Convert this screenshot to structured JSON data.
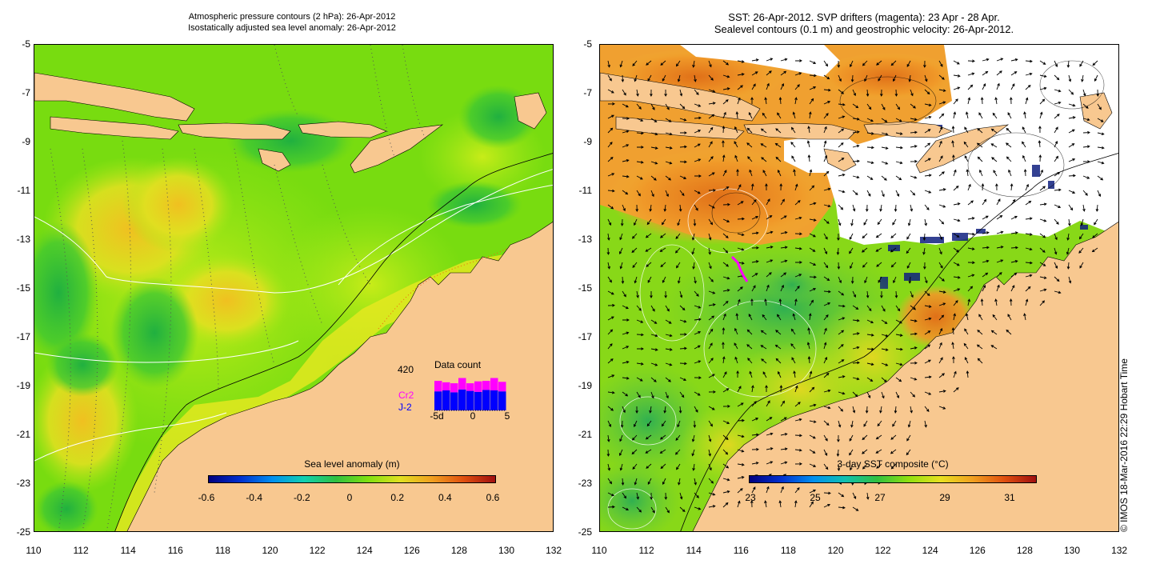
{
  "left": {
    "title_line1": "Atmospheric pressure contours (2 hPa): 26-Apr-2012",
    "title_line2": "Isostatically adjusted sea level anomaly: 26-Apr-2012",
    "colorbar": {
      "title": "Sea level anomaly (m)",
      "ticks": [
        "-0.6",
        "-0.4",
        "-0.2",
        "0",
        "0.2",
        "0.4",
        "0.6"
      ]
    },
    "data_count": {
      "title": "Data count",
      "max_label": "420",
      "series": [
        {
          "name": "Cr2",
          "color": "#ff00ff",
          "values": [
            110,
            85,
            95,
            120,
            80,
            110,
            95,
            130,
            100
          ]
        },
        {
          "name": "J-2",
          "color": "#0000ff",
          "values": [
            200,
            210,
            190,
            220,
            205,
            195,
            215,
            210,
            200
          ]
        }
      ],
      "x_ticks": [
        "-5d",
        "0",
        "5"
      ]
    }
  },
  "right": {
    "title_line1": "SST: 26-Apr-2012. SVP drifters (magenta): 23 Apr - 28 Apr.",
    "title_line2": "Sealevel contours (0.1 m) and geostrophic velocity: 26-Apr-2012.",
    "colorbar": {
      "title": "3-day SST composite (°C)",
      "ticks": [
        "23",
        "25",
        "27",
        "29",
        "31"
      ]
    }
  },
  "axes": {
    "y_labels": [
      "-5",
      "-7",
      "-9",
      "-11",
      "-13",
      "-15",
      "-17",
      "-19",
      "-21",
      "-23",
      "-25"
    ],
    "x_labels": [
      "110",
      "112",
      "114",
      "116",
      "118",
      "120",
      "122",
      "124",
      "126",
      "128",
      "130",
      "132"
    ]
  },
  "copyright": "© IMOS 18-Mar-2016 22:29 Hobart Time",
  "colors": {
    "land": "#f8c890",
    "ocean_green": "#7ae000",
    "warm_sst": "#f09020"
  }
}
